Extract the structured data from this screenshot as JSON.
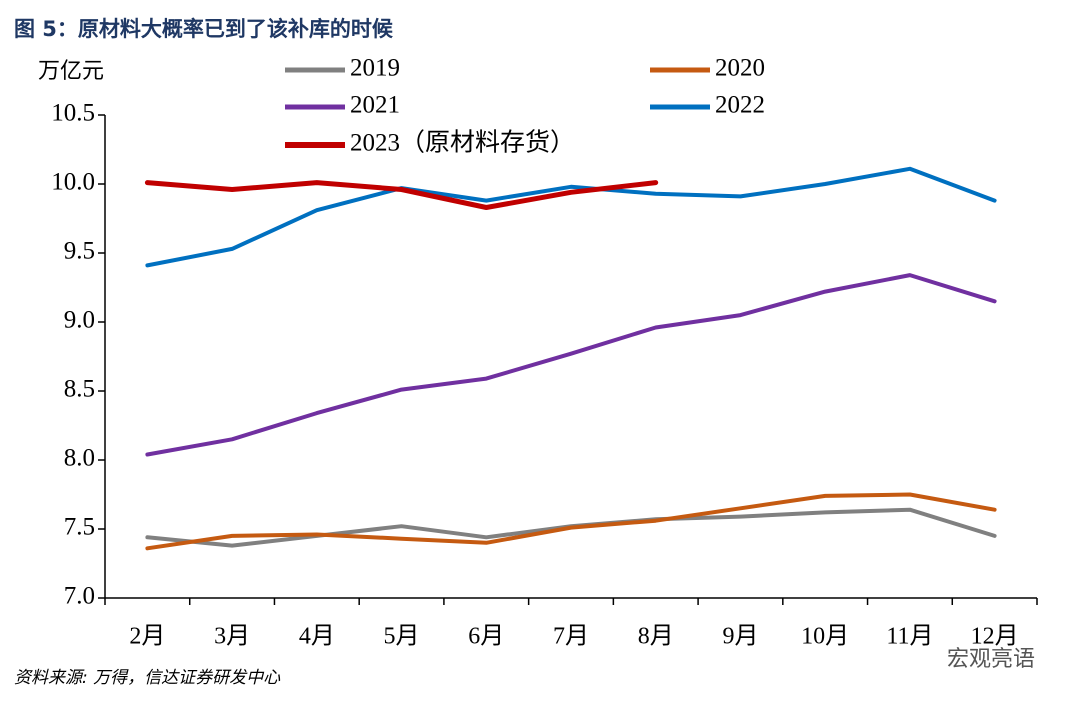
{
  "chart_data": {
    "type": "line",
    "title": "图 5：原材料大概率已到了该补库的时候",
    "y_label": "万亿元",
    "source": "资料来源: 万得，信达证券研发中心",
    "watermark": "宏观亮语",
    "categories": [
      "2月",
      "3月",
      "4月",
      "5月",
      "6月",
      "7月",
      "8月",
      "9月",
      "10月",
      "11月",
      "12月"
    ],
    "series": [
      {
        "name": "2019",
        "color": "#808080",
        "values": [
          7.44,
          7.38,
          7.45,
          7.52,
          7.44,
          7.52,
          7.57,
          7.59,
          7.62,
          7.64,
          7.45
        ]
      },
      {
        "name": "2020",
        "color": "#c55a11",
        "values": [
          7.36,
          7.45,
          7.46,
          7.43,
          7.4,
          7.51,
          7.56,
          7.65,
          7.74,
          7.75,
          7.64
        ]
      },
      {
        "name": "2021",
        "color": "#7030a0",
        "values": [
          8.04,
          8.15,
          8.34,
          8.51,
          8.59,
          8.77,
          8.96,
          9.05,
          9.22,
          9.34,
          9.15
        ]
      },
      {
        "name": "2022",
        "color": "#0070c0",
        "values": [
          9.41,
          9.53,
          9.81,
          9.97,
          9.88,
          9.98,
          9.93,
          9.91,
          10.0,
          10.11,
          9.88
        ]
      },
      {
        "name": "2023（原材料存货）",
        "color": "#c00000",
        "values": [
          10.01,
          9.96,
          10.01,
          9.96,
          9.83,
          9.94,
          10.01,
          null,
          null,
          null,
          null
        ]
      }
    ],
    "ylim": [
      7,
      10.5
    ],
    "yticks": [
      {
        "value": 7,
        "label": "7.0"
      },
      7.5,
      {
        "value": 8,
        "label": "8.0"
      },
      8.5,
      {
        "value": 9,
        "label": "9.0"
      },
      9.5,
      {
        "value": 10,
        "label": "10.0"
      },
      10.5
    ],
    "grid": false,
    "legend": "top"
  }
}
